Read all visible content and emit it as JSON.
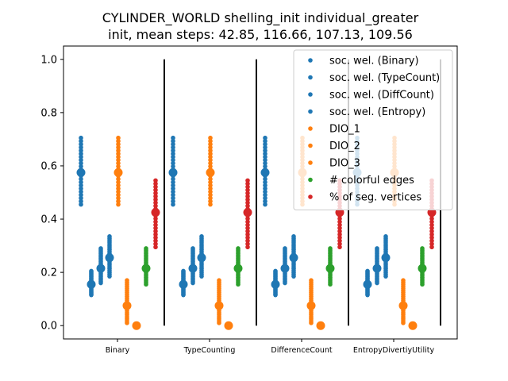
{
  "chart_data": {
    "type": "scatter",
    "title": [
      "CYLINDER_WORLD shelling_init individual_greater",
      "init, mean steps: 42.85, 116.66, 107.13, 109.56"
    ],
    "xlabel": "",
    "ylabel": "",
    "ylim": [
      -0.05,
      1.05
    ],
    "yticks": [
      0.0,
      0.2,
      0.4,
      0.6,
      0.8,
      1.0
    ],
    "ytick_labels": [
      "0.0",
      "0.2",
      "0.4",
      "0.6",
      "0.8",
      "1.0"
    ],
    "categories": [
      "Binary",
      "TypeCounting",
      "DifferenceCount",
      "EntropyDivertiyUtility"
    ],
    "legend_position": "top-right",
    "grid": false,
    "separators_between_groups": true,
    "series": [
      {
        "name": "soc. wel. (Binary)",
        "color": "#1f77b4",
        "mean": 0.575,
        "min": 0.455,
        "max": 0.705
      },
      {
        "name": "soc. wel. (TypeCount)",
        "color": "#1f77b4",
        "mean": 0.155,
        "min": 0.115,
        "max": 0.205
      },
      {
        "name": "soc. wel. (DiffCount)",
        "color": "#1f77b4",
        "mean": 0.215,
        "min": 0.16,
        "max": 0.29
      },
      {
        "name": "soc. wel. (Entropy)",
        "color": "#1f77b4",
        "mean": 0.255,
        "min": 0.185,
        "max": 0.335
      },
      {
        "name": "DIO_1",
        "color": "#ff7f0e",
        "mean": 0.575,
        "min": 0.455,
        "max": 0.705
      },
      {
        "name": "DIO_2",
        "color": "#ff7f0e",
        "mean": 0.075,
        "min": 0.01,
        "max": 0.17
      },
      {
        "name": "DIO_3",
        "color": "#ff7f0e",
        "mean": 0.0,
        "min": 0.0,
        "max": 0.0
      },
      {
        "name": "# colorful edges",
        "color": "#2ca02c",
        "mean": 0.215,
        "min": 0.155,
        "max": 0.29
      },
      {
        "name": "% of seg. vertices",
        "color": "#d62728",
        "mean": 0.425,
        "min": 0.295,
        "max": 0.545
      }
    ]
  }
}
